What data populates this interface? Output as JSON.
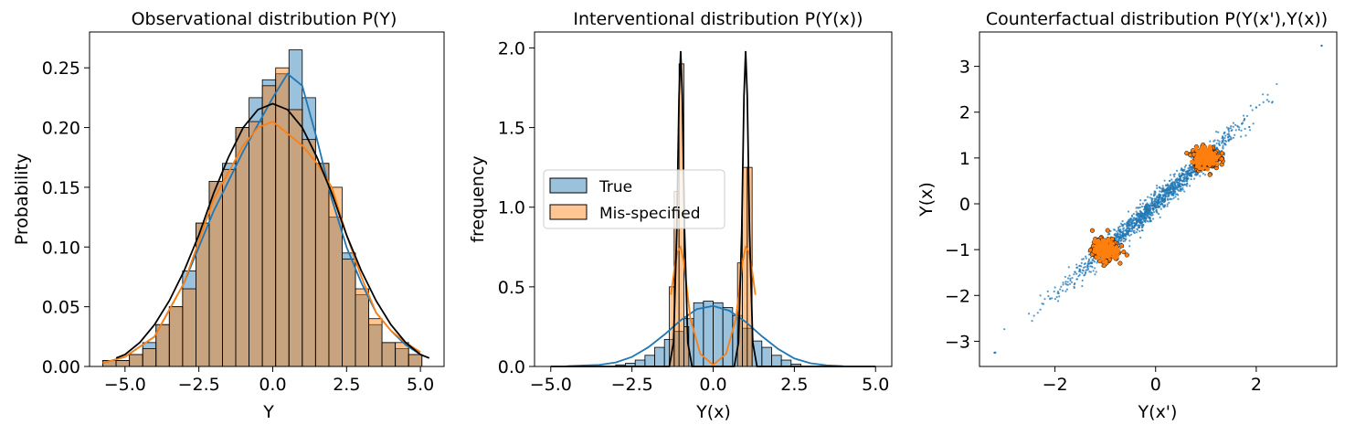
{
  "chart_data": [
    {
      "type": "histogram",
      "title": "Observational distribution P(Y)",
      "xlabel": "Y",
      "ylabel": "Probability",
      "xlim": [
        -6.2,
        5.8
      ],
      "ylim": [
        0,
        0.28
      ],
      "xticks": [
        -5.0,
        -2.5,
        0.0,
        2.5,
        5.0
      ],
      "xtick_labels": [
        "−5.0",
        "−2.5",
        "0.0",
        "2.5",
        "5.0"
      ],
      "yticks": [
        0.0,
        0.05,
        0.1,
        0.15,
        0.2,
        0.25
      ],
      "ytick_labels": [
        "0.00",
        "0.05",
        "0.10",
        "0.15",
        "0.20",
        "0.25"
      ],
      "grid": false,
      "series": [
        {
          "color": "#1f77b4",
          "bin_edges": [
            -5.75,
            -5.3,
            -4.85,
            -4.4,
            -3.95,
            -3.5,
            -3.05,
            -2.6,
            -2.15,
            -1.7,
            -1.25,
            -0.8,
            -0.35,
            0.1,
            0.55,
            1.0,
            1.45,
            1.9,
            2.35,
            2.8,
            3.25,
            3.7,
            4.15,
            4.6,
            5.05
          ],
          "values": [
            0.005,
            0.005,
            0.01,
            0.02,
            0.035,
            0.05,
            0.08,
            0.12,
            0.155,
            0.17,
            0.2,
            0.225,
            0.24,
            0.245,
            0.265,
            0.225,
            0.17,
            0.125,
            0.095,
            0.06,
            0.035,
            0.02,
            0.015,
            0.01
          ],
          "kde": [
            [
              -5.75,
              0.003
            ],
            [
              -5.0,
              0.008
            ],
            [
              -4.0,
              0.025
            ],
            [
              -3.0,
              0.07
            ],
            [
              -2.0,
              0.13
            ],
            [
              -1.0,
              0.18
            ],
            [
              0.0,
              0.225
            ],
            [
              0.5,
              0.245
            ],
            [
              1.0,
              0.235
            ],
            [
              1.5,
              0.19
            ],
            [
              2.0,
              0.14
            ],
            [
              2.5,
              0.1
            ],
            [
              3.0,
              0.07
            ],
            [
              3.5,
              0.045
            ],
            [
              4.0,
              0.03
            ],
            [
              4.5,
              0.018
            ],
            [
              5.0,
              0.01
            ]
          ]
        },
        {
          "color": "#ff7f0e",
          "bin_edges": [
            -5.75,
            -5.3,
            -4.85,
            -4.4,
            -3.95,
            -3.5,
            -3.05,
            -2.6,
            -2.15,
            -1.7,
            -1.25,
            -0.8,
            -0.35,
            0.1,
            0.55,
            1.0,
            1.45,
            1.9,
            2.35,
            2.8,
            3.25,
            3.7,
            4.15,
            4.6,
            5.05
          ],
          "values": [
            0.005,
            0.005,
            0.01,
            0.015,
            0.035,
            0.05,
            0.065,
            0.12,
            0.155,
            0.165,
            0.2,
            0.205,
            0.235,
            0.25,
            0.215,
            0.19,
            0.17,
            0.15,
            0.09,
            0.065,
            0.04,
            0.02,
            0.02,
            0.01
          ],
          "kde": [
            [
              -5.75,
              0.003
            ],
            [
              -5.0,
              0.008
            ],
            [
              -4.0,
              0.025
            ],
            [
              -3.0,
              0.07
            ],
            [
              -2.0,
              0.14
            ],
            [
              -1.0,
              0.185
            ],
            [
              -0.5,
              0.2
            ],
            [
              0.0,
              0.205
            ],
            [
              0.5,
              0.195
            ],
            [
              1.0,
              0.185
            ],
            [
              1.5,
              0.17
            ],
            [
              2.0,
              0.15
            ],
            [
              2.5,
              0.11
            ],
            [
              3.0,
              0.075
            ],
            [
              3.5,
              0.045
            ],
            [
              4.0,
              0.03
            ],
            [
              4.5,
              0.02
            ],
            [
              5.0,
              0.012
            ]
          ]
        }
      ],
      "reference_curve": {
        "color": "#000000",
        "points": [
          [
            -5.3,
            0.007
          ],
          [
            -5.0,
            0.01
          ],
          [
            -4.5,
            0.02
          ],
          [
            -4.0,
            0.035
          ],
          [
            -3.5,
            0.055
          ],
          [
            -3.0,
            0.08
          ],
          [
            -2.5,
            0.11
          ],
          [
            -2.0,
            0.145
          ],
          [
            -1.5,
            0.175
          ],
          [
            -1.0,
            0.2
          ],
          [
            -0.5,
            0.215
          ],
          [
            0.0,
            0.22
          ],
          [
            0.5,
            0.215
          ],
          [
            1.0,
            0.2
          ],
          [
            1.5,
            0.175
          ],
          [
            2.0,
            0.145
          ],
          [
            2.5,
            0.11
          ],
          [
            3.0,
            0.08
          ],
          [
            3.5,
            0.055
          ],
          [
            4.0,
            0.035
          ],
          [
            4.5,
            0.02
          ],
          [
            5.0,
            0.01
          ],
          [
            5.3,
            0.007
          ]
        ]
      }
    },
    {
      "type": "histogram",
      "title": "Interventional distribution P(Y(x))",
      "xlabel": "Y(x)",
      "ylabel": "frequency",
      "xlim": [
        -5.5,
        5.5
      ],
      "ylim": [
        0,
        2.1
      ],
      "xticks": [
        -5.0,
        -2.5,
        0.0,
        2.5,
        5.0
      ],
      "xtick_labels": [
        "−5.0",
        "−2.5",
        "0.0",
        "2.5",
        "5.0"
      ],
      "yticks": [
        0.0,
        0.5,
        1.0,
        1.5,
        2.0
      ],
      "ytick_labels": [
        "0.0",
        "0.5",
        "1.0",
        "1.5",
        "2.0"
      ],
      "grid": false,
      "legend": {
        "position": "center-left",
        "labels": [
          "True",
          "Mis-specified"
        ]
      },
      "series": [
        {
          "name": "True",
          "color": "#1f77b4",
          "bin_edges": [
            -3.0,
            -2.7,
            -2.4,
            -2.1,
            -1.8,
            -1.5,
            -1.2,
            -0.9,
            -0.6,
            -0.3,
            0.0,
            0.3,
            0.6,
            0.9,
            1.2,
            1.5,
            1.8,
            2.1,
            2.4,
            2.7
          ],
          "values": [
            0.01,
            0.02,
            0.04,
            0.07,
            0.12,
            0.17,
            0.22,
            0.3,
            0.4,
            0.41,
            0.4,
            0.37,
            0.32,
            0.24,
            0.16,
            0.12,
            0.07,
            0.04,
            0.015
          ],
          "kde": [
            [
              -4.5,
              0.002
            ],
            [
              -3.5,
              0.01
            ],
            [
              -3.0,
              0.025
            ],
            [
              -2.5,
              0.06
            ],
            [
              -2.0,
              0.12
            ],
            [
              -1.5,
              0.2
            ],
            [
              -1.0,
              0.29
            ],
            [
              -0.5,
              0.36
            ],
            [
              0.0,
              0.38
            ],
            [
              0.5,
              0.35
            ],
            [
              1.0,
              0.28
            ],
            [
              1.5,
              0.19
            ],
            [
              2.0,
              0.11
            ],
            [
              2.5,
              0.05
            ],
            [
              3.0,
              0.02
            ],
            [
              3.5,
              0.007
            ],
            [
              4.0,
              0.002
            ]
          ]
        },
        {
          "name": "Mis-specified",
          "color": "#ff7f0e",
          "bin_edges": [
            -1.35,
            -1.2,
            -1.05,
            -0.9,
            -0.75,
            0.75,
            0.9,
            1.05,
            1.2
          ],
          "values": [
            0.5,
            1.1,
            1.9,
            0.25,
            0.0,
            0.65,
            1.25,
            1.25
          ],
          "kde": [
            [
              -1.3,
              0.45
            ],
            [
              -1.2,
              0.6
            ],
            [
              -1.1,
              0.72
            ],
            [
              -1.0,
              0.75
            ],
            [
              -0.9,
              0.65
            ],
            [
              -0.7,
              0.3
            ],
            [
              -0.4,
              0.08
            ],
            [
              0.0,
              0.01
            ],
            [
              0.4,
              0.08
            ],
            [
              0.7,
              0.3
            ],
            [
              0.9,
              0.65
            ],
            [
              1.0,
              0.75
            ],
            [
              1.1,
              0.72
            ],
            [
              1.2,
              0.6
            ],
            [
              1.3,
              0.45
            ]
          ]
        }
      ],
      "reference_curve": {
        "color": "#000000",
        "points": [
          [
            -5.0,
            0.0
          ],
          [
            -1.35,
            0.0
          ],
          [
            -1.22,
            0.15
          ],
          [
            -1.12,
            0.85
          ],
          [
            -1.05,
            1.7
          ],
          [
            -1.0,
            1.98
          ],
          [
            -0.95,
            1.7
          ],
          [
            -0.88,
            0.85
          ],
          [
            -0.78,
            0.15
          ],
          [
            -0.65,
            0.0
          ],
          [
            0.65,
            0.0
          ],
          [
            0.78,
            0.15
          ],
          [
            0.88,
            0.85
          ],
          [
            0.95,
            1.7
          ],
          [
            1.0,
            1.98
          ],
          [
            1.05,
            1.7
          ],
          [
            1.12,
            0.85
          ],
          [
            1.22,
            0.15
          ],
          [
            1.35,
            0.0
          ],
          [
            5.0,
            0.0
          ]
        ]
      }
    },
    {
      "type": "scatter",
      "title": "Counterfactual distribution P(Y(x'),Y(x))",
      "xlabel": "Y(x')",
      "ylabel": "Y(x)",
      "xlim": [
        -3.5,
        3.6
      ],
      "ylim": [
        -3.55,
        3.75
      ],
      "xticks": [
        -2,
        0,
        2
      ],
      "xtick_labels": [
        "−2",
        "0",
        "2"
      ],
      "yticks": [
        -3,
        -2,
        -1,
        0,
        1,
        2,
        3
      ],
      "ytick_labels": [
        "−3",
        "−2",
        "−1",
        "0",
        "1",
        "2",
        "3"
      ],
      "grid": false,
      "series": [
        {
          "color": "#1f77b4",
          "distribution": "line y≈x, x from -3.2 to 3.3",
          "count": 1400,
          "extremes": [
            [
              -3.2,
              -3.25
            ],
            [
              3.3,
              3.45
            ]
          ]
        },
        {
          "color": "#ff7f0e",
          "edgecolor": "#000000",
          "clusters": [
            {
              "center": [
                -1.0,
                -1.0
              ],
              "spread": 0.13
            },
            {
              "center": [
                1.0,
                1.0
              ],
              "spread": 0.13
            }
          ]
        }
      ]
    }
  ]
}
